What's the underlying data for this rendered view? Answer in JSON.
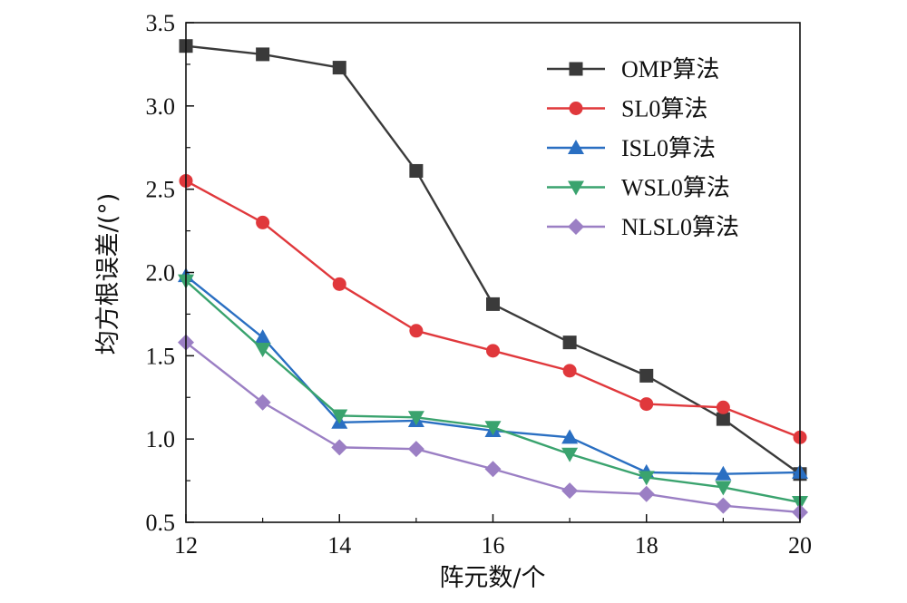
{
  "chart_data": {
    "type": "line",
    "title": "",
    "xlabel": "阵元数/个",
    "ylabel": "均方根误差/(°)",
    "xlim": [
      12,
      20
    ],
    "ylim": [
      0.5,
      3.5
    ],
    "xticks": [
      "12",
      "14",
      "16",
      "18",
      "20"
    ],
    "yticks": [
      "0.5",
      "1.0",
      "1.5",
      "2.0",
      "2.5",
      "3.0",
      "3.5"
    ],
    "grid": false,
    "legend_position": "top-right",
    "x": [
      12,
      13,
      14,
      15,
      16,
      17,
      18,
      19,
      20
    ],
    "series": [
      {
        "name": "OMP算法",
        "color": "#3a3a3a",
        "marker": "square",
        "values": [
          3.36,
          3.31,
          3.23,
          2.61,
          1.81,
          1.58,
          1.38,
          1.12,
          0.79
        ]
      },
      {
        "name": "SL0算法",
        "color": "#e0383c",
        "marker": "circle",
        "values": [
          2.55,
          2.3,
          1.93,
          1.65,
          1.53,
          1.41,
          1.21,
          1.19,
          1.01
        ]
      },
      {
        "name": "ISL0算法",
        "color": "#2a6fc2",
        "marker": "triangle-up",
        "values": [
          1.98,
          1.61,
          1.1,
          1.11,
          1.05,
          1.01,
          0.8,
          0.79,
          0.8
        ]
      },
      {
        "name": "WSL0算法",
        "color": "#3aa36e",
        "marker": "triangle-down",
        "values": [
          1.95,
          1.54,
          1.14,
          1.13,
          1.07,
          0.91,
          0.77,
          0.71,
          0.62
        ]
      },
      {
        "name": "NLSL0算法",
        "color": "#9b7fc4",
        "marker": "diamond",
        "values": [
          1.58,
          1.22,
          0.95,
          0.94,
          0.82,
          0.69,
          0.67,
          0.6,
          0.56
        ]
      }
    ]
  }
}
